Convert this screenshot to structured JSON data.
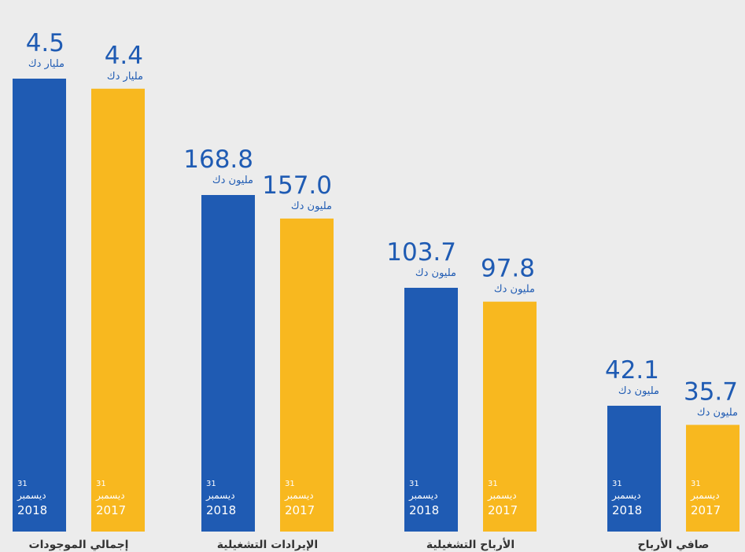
{
  "colors": {
    "bar_2018": "#1f5bb3",
    "bar_2017": "#f8b81f",
    "value_text": "#1f5bb3",
    "in_bar_text": "#ffffff",
    "label_text": "#333333",
    "background": "#ececec"
  },
  "chart_data": {
    "type": "bar",
    "subtype": "grouped, independent scale per group",
    "categories": [
      "إجمالي الموجودات",
      "الإيرادات التشغيلية",
      "الأرباح التشغيلية",
      "صافي الأرباح"
    ],
    "series": [
      {
        "year": "2018",
        "day": "31",
        "month": "ديسمبر",
        "values": [
          4.5,
          168.8,
          103.7,
          42.1
        ]
      },
      {
        "year": "2017",
        "day": "31",
        "month": "ديسمبر",
        "values": [
          4.4,
          157.0,
          97.8,
          35.7
        ]
      }
    ],
    "value_labels": [
      [
        "4.5",
        "4.4"
      ],
      [
        "168.8",
        "157.0"
      ],
      [
        "103.7",
        "97.8"
      ],
      [
        "42.1",
        "35.7"
      ]
    ],
    "units": [
      "مليار دك",
      "مليون دك",
      "مليون دك",
      "مليون دك"
    ],
    "legend": "none",
    "grid": false,
    "axes": "none"
  }
}
